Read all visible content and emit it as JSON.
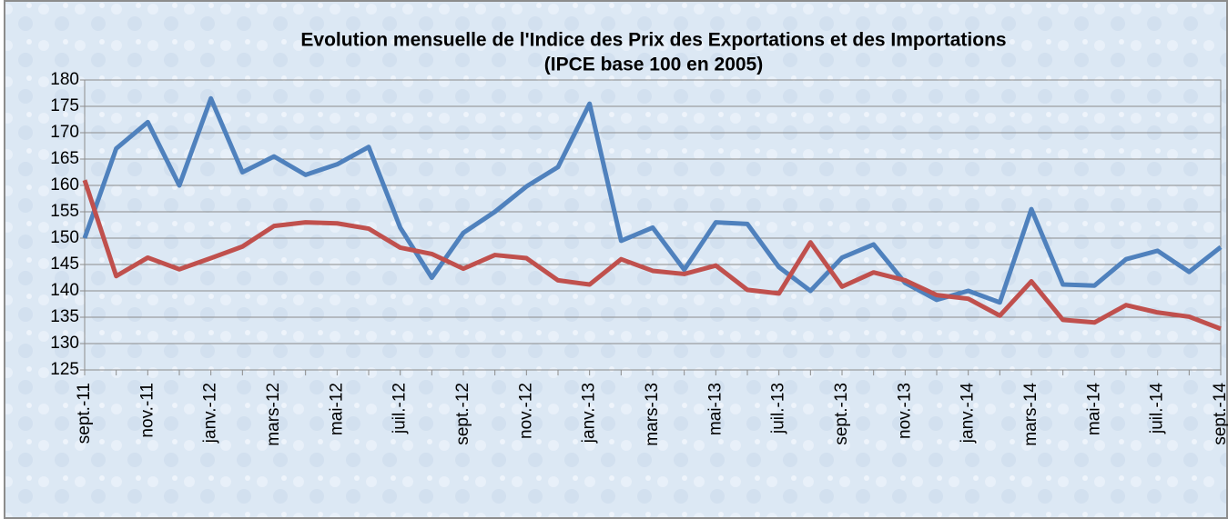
{
  "chart_data": {
    "type": "line",
    "title": "Evolution mensuelle de l'Indice des Prix des Exportations et des Importations",
    "subtitle": "(IPCE base 100 en 2005)",
    "categories": [
      "sept.-11",
      null,
      "nov.-11",
      null,
      "janv.-12",
      null,
      "mars-12",
      null,
      "mai-12",
      null,
      "juil.-12",
      null,
      "sept.-12",
      null,
      "nov.-12",
      null,
      "janv.-13",
      null,
      "mars-13",
      null,
      "mai-13",
      null,
      "juil.-13",
      null,
      "sept.-13",
      null,
      "nov.-13",
      null,
      "janv.-14",
      null,
      "mars-14",
      null,
      "mai-14",
      null,
      "juil.-14",
      null,
      "sept.-14"
    ],
    "series": [
      {
        "color": "#4f81bd",
        "values": [
          150,
          167,
          172,
          160,
          176.5,
          162.5,
          165.5,
          162,
          164,
          167.3,
          152,
          142.5,
          151,
          155,
          159.8,
          163.5,
          175.5,
          149.5,
          152,
          144,
          153,
          152.7,
          144.5,
          140,
          146.3,
          148.8,
          141.5,
          138.3,
          140,
          137.8,
          155.5,
          141.2,
          141,
          146,
          147.6,
          143.6,
          148.3
        ]
      },
      {
        "color": "#c0504d",
        "values": [
          161,
          142.8,
          146.3,
          144.1,
          146.2,
          148.4,
          152.3,
          153,
          152.8,
          151.8,
          148.2,
          147,
          144.2,
          146.8,
          146.2,
          142,
          141.2,
          146,
          143.8,
          143.2,
          144.8,
          140.2,
          139.5,
          149.2,
          140.8,
          143.5,
          142,
          139.2,
          138.5,
          135.3,
          141.8,
          134.5,
          134,
          137.3,
          135.9,
          135.1,
          132.8
        ]
      }
    ],
    "ylim": [
      125,
      180
    ],
    "yticks": [
      125,
      130,
      135,
      140,
      145,
      150,
      155,
      160,
      165,
      170,
      175,
      180
    ],
    "grid": true
  }
}
